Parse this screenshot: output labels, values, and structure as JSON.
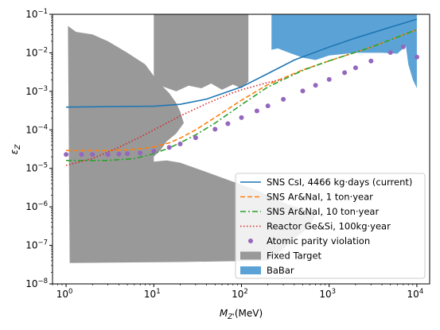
{
  "chart_data": {
    "type": "line",
    "xscale": "log",
    "yscale": "log",
    "xlim": [
      0.7,
      14000
    ],
    "ylim": [
      1e-08,
      0.1
    ],
    "xlabel_main": "M",
    "xlabel_sub": "Z'",
    "xlabel_unit": "(MeV)",
    "ylabel_main": "ε",
    "ylabel_sub": "Z",
    "x_ticks": [
      {
        "value": 1,
        "base": "10",
        "exp": "0"
      },
      {
        "value": 10,
        "base": "10",
        "exp": "1"
      },
      {
        "value": 100,
        "base": "10",
        "exp": "2"
      },
      {
        "value": 1000,
        "base": "10",
        "exp": "3"
      },
      {
        "value": 10000,
        "base": "10",
        "exp": "4"
      }
    ],
    "y_ticks": [
      {
        "value": 1e-08,
        "base": "10",
        "exp": "−8"
      },
      {
        "value": 1e-07,
        "base": "10",
        "exp": "−7"
      },
      {
        "value": 1e-06,
        "base": "10",
        "exp": "−6"
      },
      {
        "value": 1e-05,
        "base": "10",
        "exp": "−5"
      },
      {
        "value": 0.0001,
        "base": "10",
        "exp": "−4"
      },
      {
        "value": 0.001,
        "base": "10",
        "exp": "−3"
      },
      {
        "value": 0.01,
        "base": "10",
        "exp": "−2"
      },
      {
        "value": 0.1,
        "base": "10",
        "exp": "−1"
      }
    ],
    "legend_position": "bottom-right",
    "series": [
      {
        "name": "SNS CsI, 4466 kg·days (current)",
        "style": "solid",
        "color": "#1f77b4",
        "x": [
          1,
          3,
          10,
          20,
          40,
          100,
          200,
          400,
          1000,
          2000,
          5000,
          10000
        ],
        "y": [
          0.00039,
          0.0004,
          0.00041,
          0.00046,
          0.00063,
          0.0013,
          0.0029,
          0.0065,
          0.0142,
          0.0242,
          0.0462,
          0.075
        ]
      },
      {
        "name": "SNS Ar&NaI, 1 ton·year",
        "style": "dashed",
        "color": "#ff7f0e",
        "x": [
          1,
          3,
          6,
          10,
          15,
          20,
          30,
          50,
          100,
          200,
          500,
          1000,
          3000,
          10000
        ],
        "y": [
          2.9e-05,
          2.9e-05,
          3.1e-05,
          3.6e-05,
          4.6e-05,
          6.1e-05,
          0.0001,
          0.00021,
          0.00059,
          0.0015,
          0.0036,
          0.0062,
          0.014,
          0.04
        ]
      },
      {
        "name": "SNS Ar&NaI, 10 ton·year",
        "style": "dashdot",
        "color": "#2ca02c",
        "x": [
          1,
          3,
          6,
          10,
          15,
          20,
          30,
          50,
          100,
          200,
          500,
          1000,
          3000,
          10000
        ],
        "y": [
          1.6e-05,
          1.6e-05,
          1.8e-05,
          2.4e-05,
          3.4e-05,
          4.6e-05,
          7.4e-05,
          0.00015,
          0.00045,
          0.0013,
          0.0035,
          0.0062,
          0.014,
          0.04
        ]
      },
      {
        "name": "Reactor Ge&Si, 100kg·year",
        "style": "dotted",
        "color": "#d62728",
        "x": [
          1,
          2,
          4,
          7,
          10,
          20,
          40,
          70,
          100,
          200,
          300
        ],
        "y": [
          1.2e-05,
          1.8e-05,
          3.5e-05,
          6.5e-05,
          0.0001,
          0.00023,
          0.00048,
          0.00082,
          0.0011,
          0.0017,
          0.0021
        ]
      },
      {
        "name": "Atomic parity violation",
        "style": "markers",
        "color": "#9467bd",
        "x": [
          1,
          1.5,
          2,
          3,
          4,
          5,
          7,
          10,
          15,
          20,
          30,
          50,
          70,
          100,
          150,
          200,
          300,
          500,
          700,
          1000,
          1500,
          2000,
          3000,
          5000,
          7000,
          10000
        ],
        "y": [
          2.3e-05,
          2.3e-05,
          2.3e-05,
          2.3e-05,
          2.35e-05,
          2.4e-05,
          2.5e-05,
          2.8e-05,
          3.5e-05,
          4.3e-05,
          6.2e-05,
          0.000104,
          0.000145,
          0.000208,
          0.00031,
          0.00042,
          0.00062,
          0.00102,
          0.00143,
          0.00204,
          0.00305,
          0.0041,
          0.0061,
          0.0102,
          0.0143,
          0.0078
        ]
      }
    ],
    "regions": [
      {
        "name": "Fixed Target",
        "color": "#999999",
        "polygon": [
          [
            1.05,
            0.05
          ],
          [
            1.3,
            0.035
          ],
          [
            2,
            0.03
          ],
          [
            3,
            0.02
          ],
          [
            5,
            0.01
          ],
          [
            8,
            0.005
          ],
          [
            10,
            0.0025
          ],
          [
            12,
            0.0015
          ],
          [
            15,
            0.0009
          ],
          [
            18,
            0.0005
          ],
          [
            20,
            0.0003
          ],
          [
            22,
            0.00015
          ],
          [
            18,
            8e-05
          ],
          [
            14,
            5e-05
          ],
          [
            12,
            3e-05
          ],
          [
            10,
            2e-05
          ],
          [
            10,
            1.5e-05
          ],
          [
            14,
            1.6e-05
          ],
          [
            20,
            1.4e-05
          ],
          [
            40,
            8e-06
          ],
          [
            80,
            4.5e-06
          ],
          [
            150,
            2.7e-06
          ],
          [
            300,
            1.3e-06
          ],
          [
            550,
            8e-07
          ],
          [
            700,
            6.5e-07
          ],
          [
            600,
            3e-07
          ],
          [
            400,
            1.5e-07
          ],
          [
            280,
            7e-08
          ],
          [
            200,
            4e-08
          ],
          [
            20,
            3.7e-08
          ],
          [
            1.1,
            3.5e-08
          ]
        ]
      },
      {
        "name": "Fixed Target upper",
        "color": "#999999",
        "polygon": [
          [
            10,
            0.1
          ],
          [
            120,
            0.1
          ],
          [
            120,
            0.0018
          ],
          [
            100,
            0.0012
          ],
          [
            80,
            0.0015
          ],
          [
            60,
            0.0011
          ],
          [
            45,
            0.0016
          ],
          [
            35,
            0.0012
          ],
          [
            25,
            0.0014
          ],
          [
            18,
            0.001
          ],
          [
            13,
            0.0013
          ],
          [
            11,
            0.0015
          ],
          [
            10,
            0.0025
          ]
        ]
      },
      {
        "name": "BaBar",
        "color": "#5ba3d6",
        "polygon": [
          [
            220,
            0.1
          ],
          [
            10000,
            0.1
          ],
          [
            10000,
            0.0012
          ],
          [
            9000,
            0.002
          ],
          [
            8000,
            0.005
          ],
          [
            7500,
            0.015
          ],
          [
            6000,
            0.0095
          ],
          [
            4000,
            0.01
          ],
          [
            2000,
            0.01
          ],
          [
            1000,
            0.0085
          ],
          [
            700,
            0.0065
          ],
          [
            500,
            0.0075
          ],
          [
            350,
            0.01
          ],
          [
            260,
            0.013
          ],
          [
            220,
            0.012
          ]
        ]
      }
    ],
    "legend": [
      {
        "label": "SNS CsI, 4466 kg·days (current)",
        "kind": "solid",
        "color": "#1f77b4"
      },
      {
        "label": "SNS Ar&NaI, 1 ton·year",
        "kind": "dashed",
        "color": "#ff7f0e"
      },
      {
        "label": "SNS Ar&NaI, 10 ton·year",
        "kind": "dashdot",
        "color": "#2ca02c"
      },
      {
        "label": "Reactor Ge&Si, 100kg·year",
        "kind": "dotted",
        "color": "#d62728"
      },
      {
        "label": "Atomic parity violation",
        "kind": "markers",
        "color": "#9467bd"
      },
      {
        "label": "Fixed Target",
        "kind": "patch",
        "color": "#999999"
      },
      {
        "label": "BaBar",
        "kind": "patch",
        "color": "#5ba3d6"
      }
    ]
  }
}
